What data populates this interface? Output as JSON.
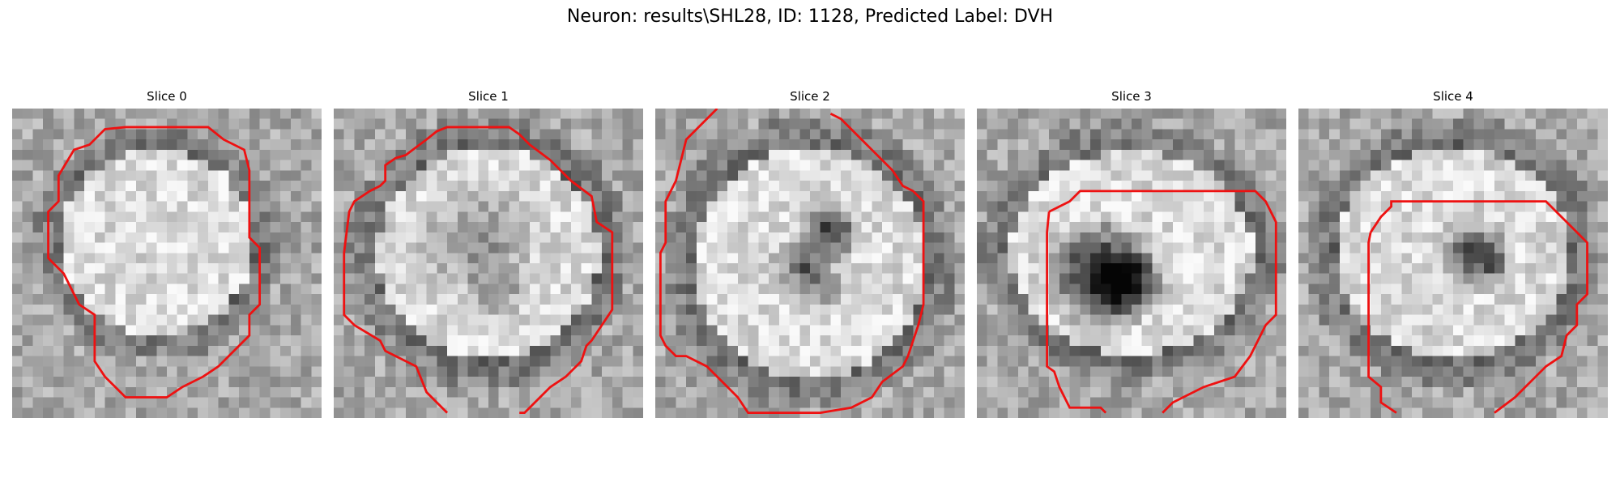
{
  "figure": {
    "title": "Neuron: results\\SHL28, ID: 1128, Predicted Label: DVH"
  },
  "panels": [
    {
      "title": "Slice 0"
    },
    {
      "title": "Slice 1"
    },
    {
      "title": "Slice 2"
    },
    {
      "title": "Slice 3"
    },
    {
      "title": "Slice 4"
    }
  ],
  "colors": {
    "contour": "#ee1111",
    "background": "#ffffff"
  },
  "image": {
    "type": "grayscale microscopy slices",
    "grid": "30x30"
  }
}
